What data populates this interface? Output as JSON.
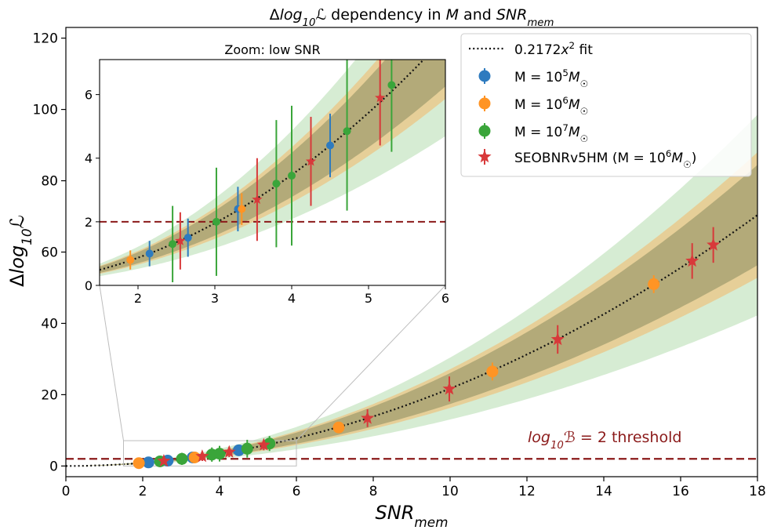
{
  "chart_data": [
    {
      "type": "scatter",
      "title": "Δlog₁₀ℒ dependency in M and SNR_mem",
      "xlabel": "SNR_mem",
      "ylabel": "Δlog₁₀ℒ",
      "xlim": [
        0,
        18
      ],
      "ylim": [
        -3,
        123
      ],
      "x_ticks": [
        "0",
        "2",
        "4",
        "6",
        "8",
        "10",
        "12",
        "14",
        "16",
        "18"
      ],
      "y_ticks": [
        "0",
        "20",
        "40",
        "60",
        "80",
        "100",
        "120"
      ],
      "fit": {
        "label": "0.2172x² fit",
        "coefficient": 0.2172,
        "inner_band_fraction": 0.2,
        "middle_band_fraction": 0.25,
        "outer_band_fraction": 0.4
      },
      "threshold": {
        "y": 2,
        "label": "log₁₀ℬ = 2 threshold",
        "color": "#8b1a1a"
      },
      "legend": {
        "placement": "top-right",
        "entries": [
          {
            "label": "0.2172x² fit",
            "marker": "dotted-line"
          },
          {
            "label": "M = 10⁵M☉",
            "marker": "circle",
            "color": "#2e7bbf"
          },
          {
            "label": "M = 10⁶M☉",
            "marker": "circle",
            "color": "#ff9424"
          },
          {
            "label": "M = 10⁷M☉",
            "marker": "circle",
            "color": "#3aa53a"
          },
          {
            "label": "SEOBNRv5HM (M = 10⁶M☉)",
            "marker": "star",
            "color": "#d8393a"
          }
        ]
      },
      "series": [
        {
          "name": "M = 10⁵M☉",
          "color": "#2e7bbf",
          "marker": "circle",
          "x": [
            2.15,
            2.65,
            3.3,
            4.5
          ],
          "y": [
            1.0,
            1.5,
            2.4,
            4.4
          ],
          "err": [
            0.4,
            0.6,
            0.7,
            1.0
          ]
        },
        {
          "name": "M = 10⁶M☉",
          "color": "#ff9424",
          "marker": "circle",
          "x": [
            1.9,
            3.35,
            7.1,
            11.1,
            15.3
          ],
          "y": [
            0.8,
            2.4,
            10.8,
            26.5,
            51.0
          ],
          "err": [
            0.3,
            0.5,
            1.5,
            2.5,
            2.5
          ]
        },
        {
          "name": "M = 10⁷M☉",
          "color": "#3aa53a",
          "marker": "circle",
          "x": [
            2.45,
            3.02,
            3.8,
            4.0,
            4.72,
            5.3
          ],
          "y": [
            1.3,
            2.0,
            3.2,
            3.45,
            4.85,
            6.3
          ],
          "err": [
            1.2,
            1.7,
            2.0,
            2.2,
            2.5,
            2.1
          ]
        },
        {
          "name": "SEOBNRv5HM (M = 10⁶M☉)",
          "color": "#d8393a",
          "marker": "star",
          "x": [
            2.55,
            3.55,
            4.25,
            5.15,
            7.85,
            9.98,
            12.8,
            16.3,
            16.85
          ],
          "y": [
            1.4,
            2.7,
            3.9,
            5.9,
            13.4,
            21.6,
            35.5,
            57.5,
            62.0
          ],
          "err": [
            0.9,
            1.3,
            1.4,
            1.5,
            2.5,
            3.5,
            4.0,
            5.0,
            5.0
          ]
        }
      ]
    },
    {
      "type": "scatter",
      "title": "Zoom: low SNR",
      "xlim": [
        1.5,
        6
      ],
      "ylim": [
        0,
        7.1
      ],
      "x_ticks": [
        "2",
        "3",
        "4",
        "5",
        "6"
      ],
      "y_ticks": [
        "0",
        "2",
        "4",
        "6"
      ],
      "note": "inset showing the same series and fit over the low SNR region"
    }
  ]
}
